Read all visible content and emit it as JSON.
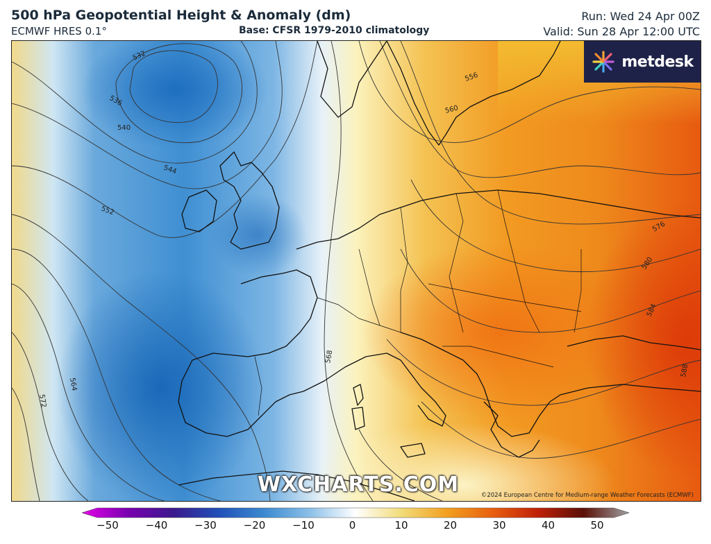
{
  "header": {
    "title": "500 hPa Geopotential Height & Anomaly (dm)",
    "model": "ECMWF HRES 0.1°",
    "base": "Base: CFSR 1979-2010 climatology",
    "run": "Run: Wed 24 Apr 00Z",
    "valid": "Valid: Sun 28 Apr 12:00 UTC"
  },
  "brand": {
    "name": "metdesk",
    "icon": "metdesk-burst-logo"
  },
  "watermark": "WXCHARTS.COM",
  "copyright": "©2024 European Centre for Medium-range Weather Forecasts (ECMWF)",
  "contour_labels": [
    "532",
    "536",
    "540",
    "544",
    "552",
    "556",
    "560",
    "564",
    "568",
    "572",
    "576",
    "580",
    "584",
    "588"
  ],
  "colorbar": {
    "ticks": [
      "−50",
      "−40",
      "−30",
      "−20",
      "−10",
      "0",
      "10",
      "20",
      "30",
      "40",
      "50"
    ],
    "colors": [
      "#e400e8",
      "#7a00b0",
      "#3c1a8c",
      "#2050b8",
      "#3c8ad0",
      "#8cc0e8",
      "#ffffff",
      "#f2dc7a",
      "#f2a020",
      "#e86010",
      "#c02008",
      "#5a1008",
      "#a0a0a0"
    ]
  },
  "colors": {
    "cold": "#2a7fc8",
    "warm": "#f07a14",
    "hot": "#e24a0c",
    "neutral": "#faf3c0",
    "land": "#111111"
  }
}
